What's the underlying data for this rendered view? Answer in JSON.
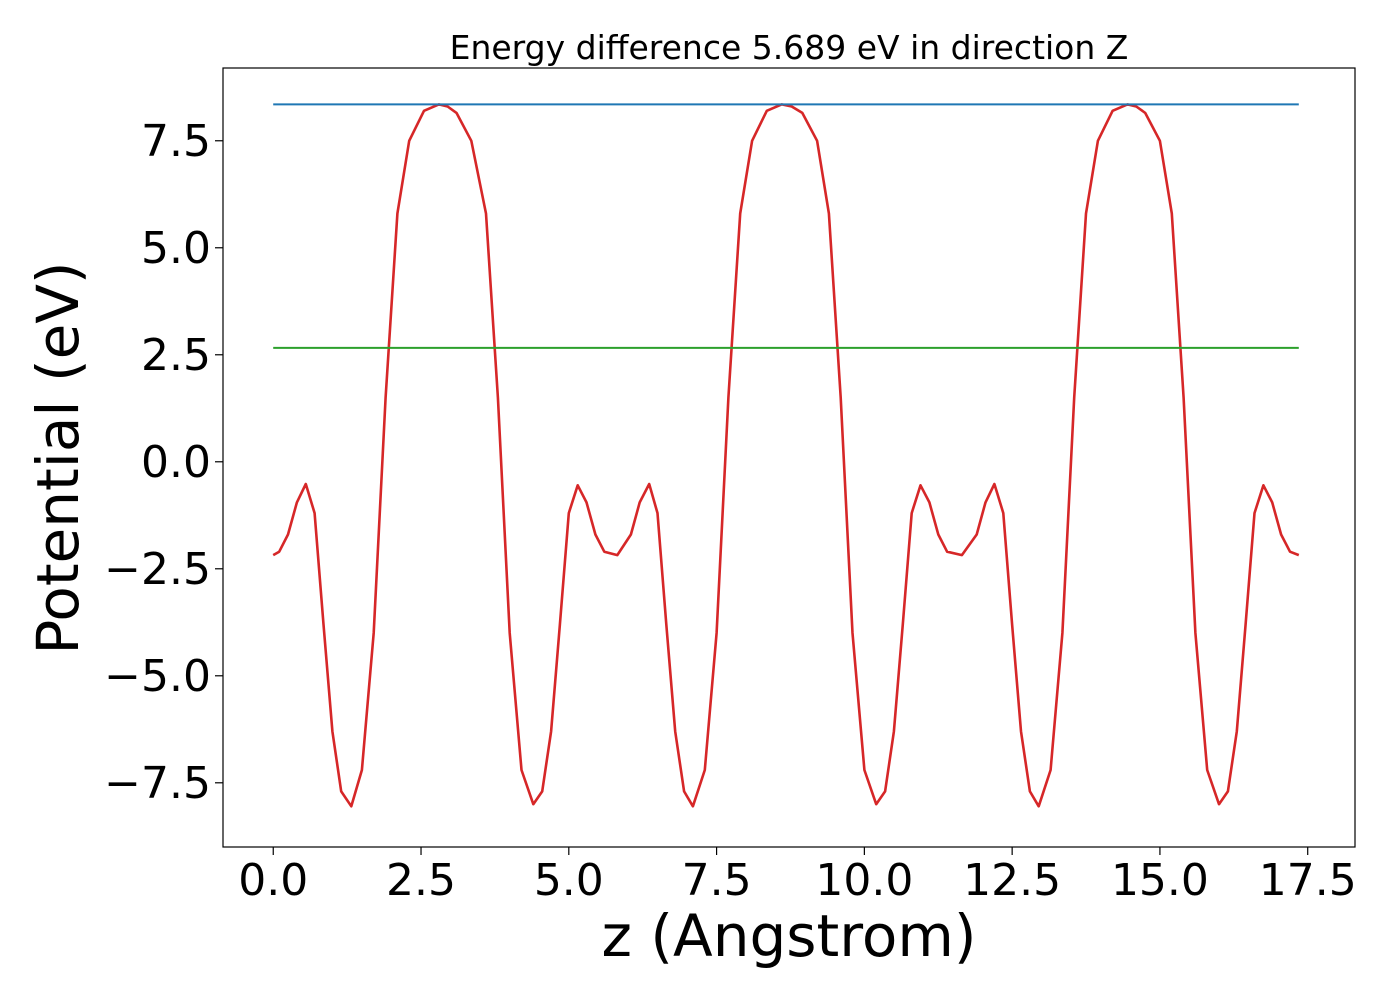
{
  "chart_data": {
    "type": "line",
    "title": "Energy difference 5.689 eV in direction Z",
    "xlabel": "z (Angstrom)",
    "ylabel": "Potential (eV)",
    "xlim": [
      -0.85,
      18.3
    ],
    "ylim": [
      -9.0,
      9.2
    ],
    "xticks": [
      0.0,
      2.5,
      5.0,
      7.5,
      10.0,
      12.5,
      15.0,
      17.5
    ],
    "xtick_labels": [
      "0.0",
      "2.5",
      "5.0",
      "7.5",
      "10.0",
      "12.5",
      "15.0",
      "17.5"
    ],
    "yticks": [
      -7.5,
      -5.0,
      -2.5,
      0.0,
      2.5,
      5.0,
      7.5
    ],
    "ytick_labels": [
      "−7.5",
      "−5.0",
      "−2.5",
      "0.0",
      "2.5",
      "5.0",
      "7.5"
    ],
    "grid": false,
    "series": [
      {
        "color": "#d62728",
        "x": [
          0.0,
          0.1,
          0.25,
          0.4,
          0.55,
          0.7,
          0.85,
          1.0,
          1.15,
          1.32,
          1.5,
          1.7,
          1.9,
          2.1,
          2.3,
          2.55,
          2.8,
          2.95,
          3.1,
          3.35,
          3.6,
          3.8,
          4.0,
          4.2,
          4.4,
          4.55,
          4.7,
          4.85,
          5.0,
          5.15,
          5.3,
          5.45,
          5.6,
          5.82,
          6.05,
          6.2,
          6.36,
          6.5,
          6.65,
          6.8,
          6.95,
          7.1,
          7.3,
          7.5,
          7.7,
          7.9,
          8.1,
          8.35,
          8.6,
          8.77,
          8.95,
          9.2,
          9.4,
          9.6,
          9.8,
          10.0,
          10.2,
          10.35,
          10.5,
          10.65,
          10.8,
          10.95,
          11.1,
          11.25,
          11.4,
          11.65,
          11.9,
          12.05,
          12.2,
          12.35,
          12.5,
          12.65,
          12.8,
          12.95,
          13.15,
          13.35,
          13.55,
          13.75,
          13.95,
          14.2,
          14.45,
          14.6,
          14.75,
          15.0,
          15.2,
          15.4,
          15.6,
          15.8,
          16.0,
          16.15,
          16.3,
          16.45,
          16.6,
          16.75,
          16.9,
          17.05,
          17.2,
          17.35
        ],
        "y": [
          -2.18,
          -2.1,
          -1.7,
          -0.95,
          -0.52,
          -1.2,
          -3.8,
          -6.3,
          -7.7,
          -8.05,
          -7.2,
          -4.0,
          1.5,
          5.8,
          7.5,
          8.2,
          8.35,
          8.3,
          8.15,
          7.5,
          5.8,
          1.5,
          -4.0,
          -7.2,
          -8.0,
          -7.7,
          -6.3,
          -3.8,
          -1.2,
          -0.55,
          -0.95,
          -1.7,
          -2.1,
          -2.18,
          -1.7,
          -0.95,
          -0.52,
          -1.2,
          -3.8,
          -6.3,
          -7.7,
          -8.05,
          -7.2,
          -4.0,
          1.5,
          5.8,
          7.5,
          8.2,
          8.35,
          8.3,
          8.15,
          7.5,
          5.8,
          1.5,
          -4.0,
          -7.2,
          -8.0,
          -7.7,
          -6.3,
          -3.8,
          -1.2,
          -0.55,
          -0.95,
          -1.7,
          -2.1,
          -2.18,
          -1.7,
          -0.95,
          -0.52,
          -1.2,
          -3.8,
          -6.3,
          -7.7,
          -8.05,
          -7.2,
          -4.0,
          1.5,
          5.8,
          7.5,
          8.2,
          8.35,
          8.3,
          8.15,
          7.5,
          5.8,
          1.5,
          -4.0,
          -7.2,
          -8.0,
          -7.7,
          -6.3,
          -3.8,
          -1.2,
          -0.55,
          -0.95,
          -1.7,
          -2.1,
          -2.18
        ]
      },
      {
        "color": "#1f77b4",
        "x": [
          0.0,
          17.35
        ],
        "y": [
          8.35,
          8.35
        ]
      },
      {
        "color": "#2ca02c",
        "x": [
          0.0,
          17.35
        ],
        "y": [
          2.66,
          2.66
        ]
      }
    ]
  }
}
